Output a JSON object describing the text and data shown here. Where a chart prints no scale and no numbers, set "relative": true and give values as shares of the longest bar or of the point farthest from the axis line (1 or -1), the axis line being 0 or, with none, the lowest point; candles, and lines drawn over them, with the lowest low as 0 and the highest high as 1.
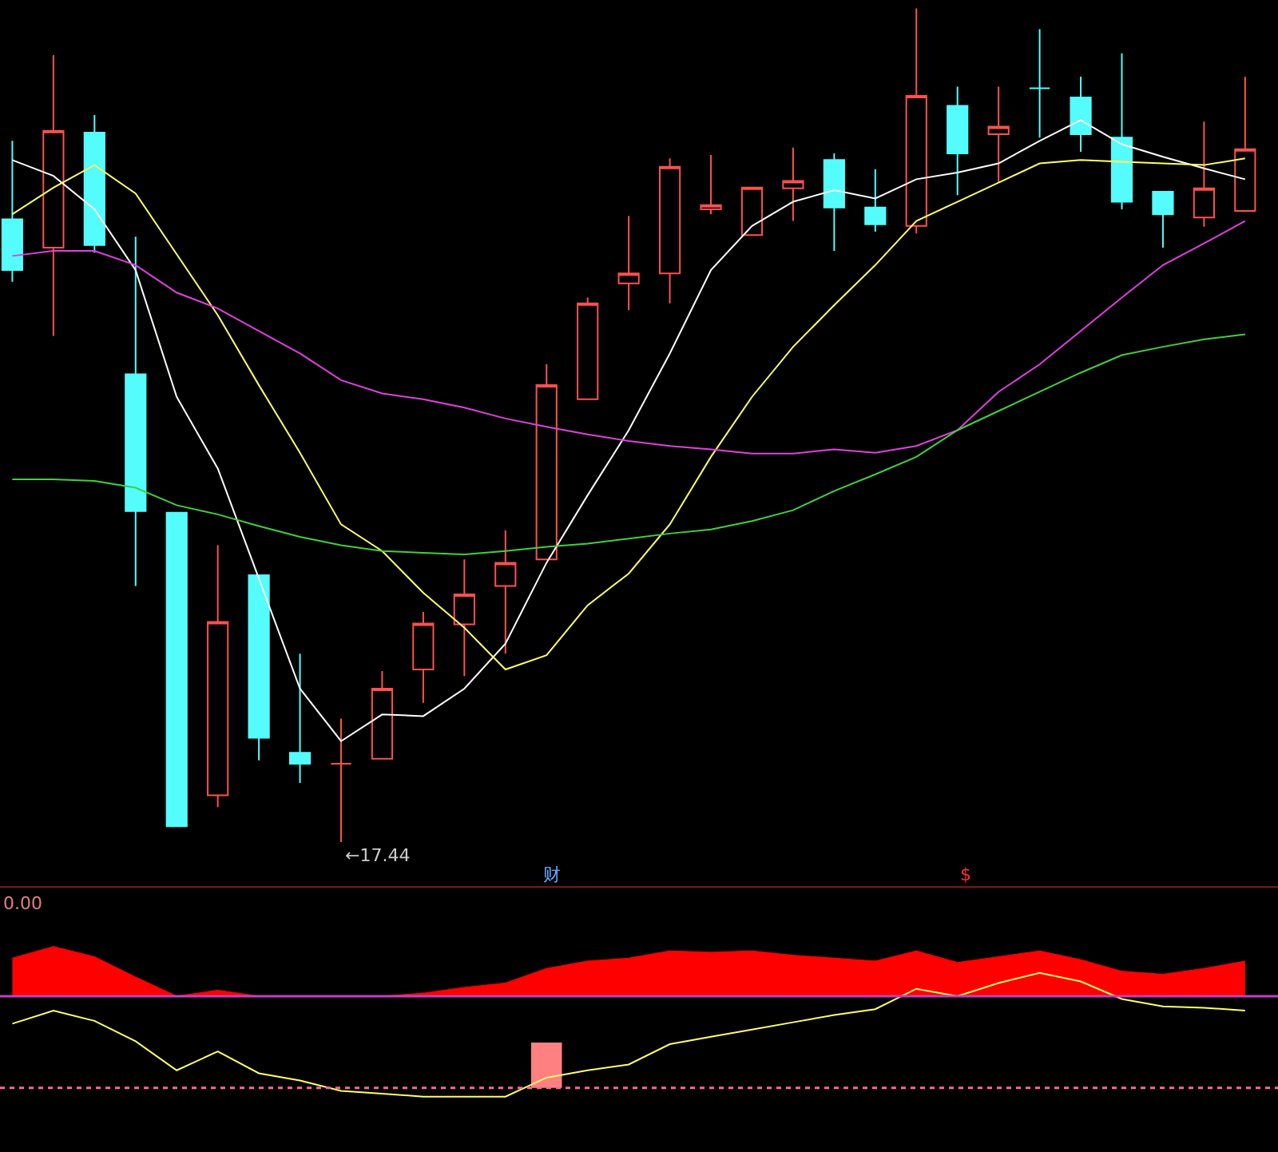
{
  "chart_data": [
    {
      "type": "candlestick",
      "relative": true,
      "categories": [
        null,
        null,
        null,
        null,
        null,
        null,
        null,
        null,
        null,
        null,
        null,
        null,
        null,
        null,
        null,
        null,
        null,
        null,
        null,
        null,
        null,
        null,
        null,
        null,
        null,
        null,
        null,
        null,
        null,
        null,
        null
      ],
      "ohlc": [
        [
          0.747,
          0.841,
          0.672,
          0.686
        ],
        [
          0.713,
          0.944,
          0.607,
          0.853
        ],
        [
          0.851,
          0.872,
          0.707,
          0.716
        ],
        [
          0.561,
          0.726,
          0.307,
          0.397
        ],
        [
          0.395,
          0.395,
          0.019,
          0.019
        ],
        [
          0.056,
          0.356,
          0.042,
          0.264
        ],
        [
          0.32,
          0.32,
          0.098,
          0.125
        ],
        [
          0.107,
          0.226,
          0.071,
          0.094
        ],
        [
          0.094,
          0.148,
          0.0,
          0.094
        ],
        [
          0.1,
          0.205,
          0.1,
          0.184
        ],
        [
          0.207,
          0.276,
          0.167,
          0.262
        ],
        [
          0.261,
          0.339,
          0.199,
          0.297
        ],
        [
          0.307,
          0.374,
          0.226,
          0.335
        ],
        [
          0.339,
          0.573,
          0.339,
          0.548
        ],
        [
          0.531,
          0.653,
          0.531,
          0.646
        ],
        [
          0.67,
          0.751,
          0.638,
          0.682
        ],
        [
          0.682,
          0.82,
          0.646,
          0.81
        ],
        [
          0.759,
          0.824,
          0.753,
          0.764
        ],
        [
          0.728,
          0.785,
          0.728,
          0.785
        ],
        [
          0.784,
          0.833,
          0.745,
          0.793
        ],
        [
          0.818,
          0.826,
          0.709,
          0.761
        ],
        [
          0.761,
          0.807,
          0.732,
          0.741
        ],
        [
          0.739,
          1.0,
          0.73,
          0.895
        ],
        [
          0.883,
          0.906,
          0.776,
          0.826
        ],
        [
          0.849,
          0.906,
          0.791,
          0.858
        ],
        [
          0.904,
          0.975,
          0.845,
          0.904
        ],
        [
          0.893,
          0.918,
          0.828,
          0.849
        ],
        [
          0.845,
          0.946,
          0.759,
          0.768
        ],
        [
          0.78,
          0.78,
          0.713,
          0.753
        ],
        [
          0.749,
          0.864,
          0.738,
          0.784
        ],
        [
          0.757,
          0.918,
          0.757,
          0.831
        ]
      ],
      "colors": [
        "#54fcfc",
        "#ff5050",
        "#54fcfc",
        "#54fcfc",
        "#54fcfc",
        "#ff5050",
        "#54fcfc",
        "#54fcfc",
        "#ff5050",
        "#ff5050",
        "#ff5050",
        "#ff5050",
        "#ff5050",
        "#ff5050",
        "#ff5050",
        "#ff5050",
        "#ff5050",
        "#ff5050",
        "#ff5050",
        "#ff5050",
        "#54fcfc",
        "#54fcfc",
        "#ff5050",
        "#54fcfc",
        "#ff5050",
        "#54fcfc",
        "#54fcfc",
        "#54fcfc",
        "#54fcfc",
        "#ff5050",
        "#ff5050"
      ],
      "series": [
        {
          "type": "line",
          "color": "#ffffff",
          "values": [
            0.818,
            0.799,
            0.759,
            0.686,
            0.534,
            0.448,
            0.316,
            0.184,
            0.121,
            0.153,
            0.151,
            0.184,
            0.238,
            0.335,
            0.416,
            0.494,
            0.586,
            0.686,
            0.739,
            0.768,
            0.782,
            0.772,
            0.795,
            0.803,
            0.814,
            0.841,
            0.866,
            0.837,
            0.822,
            0.808,
            0.795
          ]
        },
        {
          "type": "line",
          "color": "#ffff66",
          "values": [
            0.753,
            0.785,
            0.812,
            0.778,
            0.705,
            0.632,
            0.548,
            0.467,
            0.381,
            0.349,
            0.299,
            0.257,
            0.207,
            0.224,
            0.284,
            0.322,
            0.381,
            0.462,
            0.534,
            0.594,
            0.644,
            0.692,
            0.745,
            0.768,
            0.791,
            0.814,
            0.818,
            0.816,
            0.814,
            0.812,
            0.82
          ]
        },
        {
          "type": "line",
          "color": "#e040e0",
          "values": [
            0.703,
            0.709,
            0.709,
            0.692,
            0.659,
            0.64,
            0.613,
            0.586,
            0.554,
            0.538,
            0.531,
            0.521,
            0.508,
            0.498,
            0.489,
            0.481,
            0.475,
            0.471,
            0.466,
            0.466,
            0.471,
            0.467,
            0.475,
            0.494,
            0.54,
            0.573,
            0.613,
            0.653,
            0.692,
            0.718,
            0.745
          ]
        },
        {
          "type": "line",
          "color": "#40d040",
          "values": [
            0.435,
            0.435,
            0.433,
            0.425,
            0.404,
            0.393,
            0.379,
            0.366,
            0.356,
            0.349,
            0.347,
            0.345,
            0.349,
            0.354,
            0.358,
            0.364,
            0.37,
            0.375,
            0.385,
            0.398,
            0.421,
            0.441,
            0.462,
            0.494,
            0.517,
            0.54,
            0.563,
            0.584,
            0.594,
            0.603,
            0.609
          ]
        }
      ],
      "annotations": [
        "←17.44"
      ]
    },
    {
      "type": "area",
      "relative": true,
      "categories": [
        null,
        null,
        null,
        null,
        null,
        null,
        null,
        null,
        null,
        null,
        null,
        null,
        null,
        null,
        null,
        null,
        null,
        null,
        null,
        null,
        null,
        null,
        null,
        null,
        null,
        null,
        null,
        null,
        null,
        null,
        null
      ],
      "series": [
        {
          "type": "area",
          "color": "#ff0000",
          "values": [
            0.918,
            1.0,
            0.928,
            0.784,
            0.649,
            0.691,
            0.649,
            0.649,
            0.649,
            0.649,
            0.67,
            0.711,
            0.742,
            0.845,
            0.897,
            0.918,
            0.969,
            0.959,
            0.969,
            0.938,
            0.918,
            0.897,
            0.969,
            0.887,
            0.928,
            0.969,
            0.907,
            0.825,
            0.804,
            0.845,
            0.897
          ]
        },
        {
          "type": "line",
          "color": "#ffff66",
          "values": [
            0.454,
            0.546,
            0.474,
            0.33,
            0.124,
            0.258,
            0.103,
            0.052,
            -0.021,
            -0.041,
            -0.062,
            -0.062,
            -0.062,
            0.072,
            0.124,
            0.165,
            0.309,
            0.361,
            0.412,
            0.464,
            0.515,
            0.557,
            0.701,
            0.649,
            0.742,
            0.814,
            0.753,
            0.629,
            0.577,
            0.567,
            0.546
          ]
        },
        {
          "type": "bar",
          "color": "#ff8080",
          "values": [
            null,
            null,
            null,
            null,
            null,
            null,
            null,
            null,
            null,
            null,
            null,
            null,
            null,
            0.32,
            null,
            null,
            null,
            null,
            null,
            null,
            null,
            null,
            null,
            null,
            null,
            null,
            null,
            null,
            null,
            null,
            null
          ]
        }
      ],
      "ref_lines": [
        {
          "axis": "y",
          "value": 0,
          "color": "#ff6699",
          "line_style": "dotted"
        },
        {
          "axis": "y",
          "value": 0.649,
          "color": "#c040c0",
          "line_style": "solid"
        }
      ],
      "annotations": [
        "0.00",
        "财",
        "$"
      ]
    }
  ]
}
